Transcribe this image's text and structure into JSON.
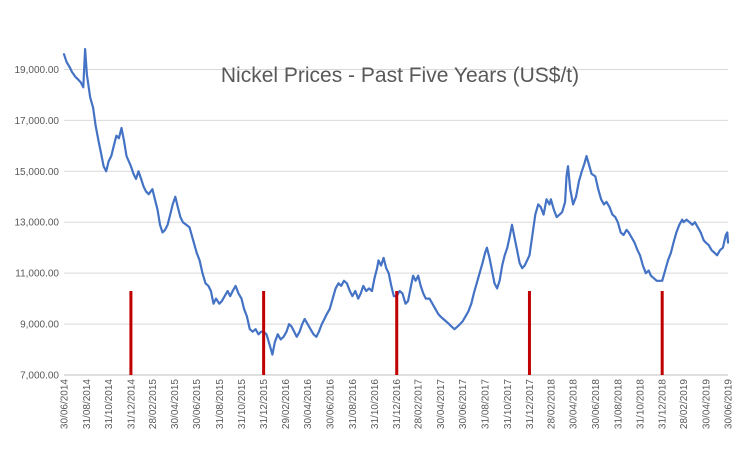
{
  "chart_data": {
    "type": "line",
    "title": "Nickel Prices - Past Five Years  (US$/t)",
    "xlabel": "",
    "ylabel": "",
    "ylim": [
      7000,
      20000
    ],
    "grid": "horizontal",
    "legend": "none",
    "yticks": [
      "7,000.00",
      "9,000.00",
      "11,000.00",
      "13,000.00",
      "15,000.00",
      "17,000.00",
      "19,000.00"
    ],
    "xticks": [
      "30/06/2014",
      "31/08/2014",
      "31/10/2014",
      "31/12/2014",
      "28/02/2015",
      "30/04/2015",
      "30/06/2015",
      "31/08/2015",
      "31/10/2015",
      "31/12/2015",
      "29/02/2016",
      "30/04/2016",
      "30/06/2016",
      "31/08/2016",
      "31/10/2016",
      "31/12/2016",
      "28/02/2017",
      "30/04/2017",
      "30/06/2017",
      "31/08/2017",
      "31/10/2017",
      "31/12/2017",
      "28/02/2018",
      "30/04/2018",
      "30/06/2018",
      "31/08/2018",
      "31/10/2018",
      "31/12/2018",
      "28/02/2019",
      "30/04/2019",
      "30/06/2019"
    ],
    "line_color": "#4472c4",
    "marker_color": "#c00000",
    "series": [
      {
        "points": [
          [
            "2014-06-30",
            19600
          ],
          [
            "2014-07-07",
            19300
          ],
          [
            "2014-07-15",
            19100
          ],
          [
            "2014-07-22",
            18900
          ],
          [
            "2014-08-01",
            18700
          ],
          [
            "2014-08-08",
            18600
          ],
          [
            "2014-08-15",
            18500
          ],
          [
            "2014-08-22",
            18300
          ],
          [
            "2014-08-27",
            19800
          ],
          [
            "2014-09-01",
            18800
          ],
          [
            "2014-09-10",
            17900
          ],
          [
            "2014-09-18",
            17500
          ],
          [
            "2014-09-25",
            16800
          ],
          [
            "2014-10-03",
            16200
          ],
          [
            "2014-10-10",
            15700
          ],
          [
            "2014-10-17",
            15200
          ],
          [
            "2014-10-24",
            15000
          ],
          [
            "2014-10-31",
            15400
          ],
          [
            "2014-11-07",
            15600
          ],
          [
            "2014-11-14",
            16000
          ],
          [
            "2014-11-21",
            16400
          ],
          [
            "2014-11-28",
            16300
          ],
          [
            "2014-12-05",
            16700
          ],
          [
            "2014-12-12",
            16200
          ],
          [
            "2014-12-19",
            15600
          ],
          [
            "2014-12-31",
            15200
          ],
          [
            "2015-01-07",
            14900
          ],
          [
            "2015-01-14",
            14700
          ],
          [
            "2015-01-21",
            15000
          ],
          [
            "2015-01-28",
            14700
          ],
          [
            "2015-02-04",
            14400
          ],
          [
            "2015-02-11",
            14200
          ],
          [
            "2015-02-18",
            14100
          ],
          [
            "2015-02-28",
            14300
          ],
          [
            "2015-03-07",
            13900
          ],
          [
            "2015-03-14",
            13500
          ],
          [
            "2015-03-21",
            12900
          ],
          [
            "2015-03-28",
            12600
          ],
          [
            "2015-04-04",
            12700
          ],
          [
            "2015-04-11",
            12900
          ],
          [
            "2015-04-18",
            13300
          ],
          [
            "2015-04-25",
            13700
          ],
          [
            "2015-05-02",
            14000
          ],
          [
            "2015-05-09",
            13600
          ],
          [
            "2015-05-16",
            13200
          ],
          [
            "2015-05-23",
            13000
          ],
          [
            "2015-06-01",
            12900
          ],
          [
            "2015-06-10",
            12800
          ],
          [
            "2015-06-20",
            12300
          ],
          [
            "2015-06-30",
            11800
          ],
          [
            "2015-07-08",
            11500
          ],
          [
            "2015-07-16",
            11000
          ],
          [
            "2015-07-24",
            10600
          ],
          [
            "2015-08-01",
            10500
          ],
          [
            "2015-08-08",
            10300
          ],
          [
            "2015-08-15",
            9800
          ],
          [
            "2015-08-22",
            10000
          ],
          [
            "2015-08-31",
            9800
          ],
          [
            "2015-09-07",
            9900
          ],
          [
            "2015-09-15",
            10100
          ],
          [
            "2015-09-23",
            10300
          ],
          [
            "2015-09-30",
            10100
          ],
          [
            "2015-10-07",
            10300
          ],
          [
            "2015-10-15",
            10500
          ],
          [
            "2015-10-23",
            10200
          ],
          [
            "2015-10-31",
            10000
          ],
          [
            "2015-11-07",
            9600
          ],
          [
            "2015-11-15",
            9300
          ],
          [
            "2015-11-23",
            8800
          ],
          [
            "2015-12-01",
            8700
          ],
          [
            "2015-12-09",
            8800
          ],
          [
            "2015-12-17",
            8600
          ],
          [
            "2015-12-24",
            8700
          ],
          [
            "2015-12-31",
            8700
          ],
          [
            "2016-01-08",
            8600
          ],
          [
            "2016-01-16",
            8200
          ],
          [
            "2016-01-24",
            7800
          ],
          [
            "2016-01-31",
            8300
          ],
          [
            "2016-02-08",
            8600
          ],
          [
            "2016-02-16",
            8400
          ],
          [
            "2016-02-24",
            8500
          ],
          [
            "2016-03-03",
            8700
          ],
          [
            "2016-03-10",
            9000
          ],
          [
            "2016-03-17",
            8900
          ],
          [
            "2016-03-24",
            8700
          ],
          [
            "2016-03-31",
            8500
          ],
          [
            "2016-04-08",
            8700
          ],
          [
            "2016-04-15",
            9000
          ],
          [
            "2016-04-22",
            9200
          ],
          [
            "2016-04-30",
            9000
          ],
          [
            "2016-05-08",
            8800
          ],
          [
            "2016-05-16",
            8600
          ],
          [
            "2016-05-24",
            8500
          ],
          [
            "2016-05-31",
            8700
          ],
          [
            "2016-06-08",
            9000
          ],
          [
            "2016-06-15",
            9200
          ],
          [
            "2016-06-22",
            9400
          ],
          [
            "2016-06-30",
            9600
          ],
          [
            "2016-07-08",
            10000
          ],
          [
            "2016-07-16",
            10400
          ],
          [
            "2016-07-24",
            10600
          ],
          [
            "2016-07-31",
            10500
          ],
          [
            "2016-08-08",
            10700
          ],
          [
            "2016-08-16",
            10600
          ],
          [
            "2016-08-24",
            10300
          ],
          [
            "2016-08-31",
            10100
          ],
          [
            "2016-09-08",
            10300
          ],
          [
            "2016-09-16",
            10000
          ],
          [
            "2016-09-23",
            10200
          ],
          [
            "2016-09-30",
            10500
          ],
          [
            "2016-10-08",
            10300
          ],
          [
            "2016-10-16",
            10400
          ],
          [
            "2016-10-24",
            10300
          ],
          [
            "2016-10-31",
            10800
          ],
          [
            "2016-11-07",
            11200
          ],
          [
            "2016-11-11",
            11500
          ],
          [
            "2016-11-18",
            11300
          ],
          [
            "2016-11-25",
            11600
          ],
          [
            "2016-12-02",
            11200
          ],
          [
            "2016-12-09",
            11000
          ],
          [
            "2016-12-16",
            10500
          ],
          [
            "2016-12-23",
            10100
          ],
          [
            "2016-12-31",
            10100
          ],
          [
            "2017-01-08",
            10300
          ],
          [
            "2017-01-16",
            10200
          ],
          [
            "2017-01-24",
            9800
          ],
          [
            "2017-01-31",
            9900
          ],
          [
            "2017-02-07",
            10400
          ],
          [
            "2017-02-14",
            10900
          ],
          [
            "2017-02-21",
            10700
          ],
          [
            "2017-02-28",
            10900
          ],
          [
            "2017-03-07",
            10500
          ],
          [
            "2017-03-14",
            10200
          ],
          [
            "2017-03-21",
            10000
          ],
          [
            "2017-03-31",
            10000
          ],
          [
            "2017-04-08",
            9800
          ],
          [
            "2017-04-16",
            9600
          ],
          [
            "2017-04-24",
            9400
          ],
          [
            "2017-04-30",
            9300
          ],
          [
            "2017-05-08",
            9200
          ],
          [
            "2017-05-16",
            9100
          ],
          [
            "2017-05-24",
            9000
          ],
          [
            "2017-05-31",
            8900
          ],
          [
            "2017-06-08",
            8800
          ],
          [
            "2017-06-16",
            8900
          ],
          [
            "2017-06-23",
            9000
          ],
          [
            "2017-06-30",
            9100
          ],
          [
            "2017-07-08",
            9300
          ],
          [
            "2017-07-16",
            9500
          ],
          [
            "2017-07-24",
            9800
          ],
          [
            "2017-07-31",
            10200
          ],
          [
            "2017-08-08",
            10600
          ],
          [
            "2017-08-16",
            11000
          ],
          [
            "2017-08-24",
            11400
          ],
          [
            "2017-08-31",
            11800
          ],
          [
            "2017-09-05",
            12000
          ],
          [
            "2017-09-12",
            11600
          ],
          [
            "2017-09-19",
            11100
          ],
          [
            "2017-09-26",
            10600
          ],
          [
            "2017-10-03",
            10400
          ],
          [
            "2017-10-10",
            10700
          ],
          [
            "2017-10-17",
            11300
          ],
          [
            "2017-10-24",
            11700
          ],
          [
            "2017-10-31",
            12000
          ],
          [
            "2017-11-06",
            12400
          ],
          [
            "2017-11-13",
            12900
          ],
          [
            "2017-11-20",
            12400
          ],
          [
            "2017-11-27",
            11900
          ],
          [
            "2017-12-04",
            11400
          ],
          [
            "2017-12-11",
            11200
          ],
          [
            "2017-12-18",
            11300
          ],
          [
            "2017-12-31",
            11700
          ],
          [
            "2018-01-08",
            12500
          ],
          [
            "2018-01-16",
            13300
          ],
          [
            "2018-01-24",
            13700
          ],
          [
            "2018-01-31",
            13600
          ],
          [
            "2018-02-08",
            13300
          ],
          [
            "2018-02-16",
            13900
          ],
          [
            "2018-02-24",
            13700
          ],
          [
            "2018-02-28",
            13900
          ],
          [
            "2018-03-08",
            13500
          ],
          [
            "2018-03-16",
            13200
          ],
          [
            "2018-03-24",
            13300
          ],
          [
            "2018-03-31",
            13400
          ],
          [
            "2018-04-08",
            13800
          ],
          [
            "2018-04-12",
            14800
          ],
          [
            "2018-04-16",
            15200
          ],
          [
            "2018-04-22",
            14300
          ],
          [
            "2018-04-30",
            13700
          ],
          [
            "2018-05-08",
            14000
          ],
          [
            "2018-05-16",
            14600
          ],
          [
            "2018-05-24",
            15000
          ],
          [
            "2018-05-31",
            15300
          ],
          [
            "2018-06-06",
            15600
          ],
          [
            "2018-06-12",
            15300
          ],
          [
            "2018-06-20",
            14900
          ],
          [
            "2018-06-30",
            14800
          ],
          [
            "2018-07-08",
            14300
          ],
          [
            "2018-07-16",
            13900
          ],
          [
            "2018-07-24",
            13700
          ],
          [
            "2018-07-31",
            13800
          ],
          [
            "2018-08-08",
            13600
          ],
          [
            "2018-08-16",
            13300
          ],
          [
            "2018-08-24",
            13200
          ],
          [
            "2018-08-31",
            13000
          ],
          [
            "2018-09-08",
            12600
          ],
          [
            "2018-09-16",
            12500
          ],
          [
            "2018-09-24",
            12700
          ],
          [
            "2018-09-30",
            12600
          ],
          [
            "2018-10-08",
            12400
          ],
          [
            "2018-10-16",
            12200
          ],
          [
            "2018-10-24",
            11900
          ],
          [
            "2018-10-31",
            11700
          ],
          [
            "2018-11-08",
            11300
          ],
          [
            "2018-11-16",
            11000
          ],
          [
            "2018-11-24",
            11100
          ],
          [
            "2018-11-30",
            10900
          ],
          [
            "2018-12-08",
            10800
          ],
          [
            "2018-12-16",
            10700
          ],
          [
            "2018-12-24",
            10700
          ],
          [
            "2018-12-31",
            10700
          ],
          [
            "2019-01-08",
            11100
          ],
          [
            "2019-01-16",
            11500
          ],
          [
            "2019-01-24",
            11800
          ],
          [
            "2019-01-31",
            12200
          ],
          [
            "2019-02-08",
            12600
          ],
          [
            "2019-02-16",
            12900
          ],
          [
            "2019-02-24",
            13100
          ],
          [
            "2019-02-28",
            13000
          ],
          [
            "2019-03-08",
            13100
          ],
          [
            "2019-03-16",
            13000
          ],
          [
            "2019-03-24",
            12900
          ],
          [
            "2019-03-31",
            13000
          ],
          [
            "2019-04-08",
            12800
          ],
          [
            "2019-04-16",
            12600
          ],
          [
            "2019-04-24",
            12300
          ],
          [
            "2019-04-30",
            12200
          ],
          [
            "2019-05-08",
            12100
          ],
          [
            "2019-05-16",
            11900
          ],
          [
            "2019-05-24",
            11800
          ],
          [
            "2019-05-31",
            11700
          ],
          [
            "2019-06-08",
            11900
          ],
          [
            "2019-06-16",
            12000
          ],
          [
            "2019-06-24",
            12500
          ],
          [
            "2019-06-28",
            12600
          ],
          [
            "2019-06-30",
            12200
          ]
        ]
      }
    ],
    "markers": [
      {
        "x": "2014-12-31",
        "y_from": 7000,
        "y_to": 10300
      },
      {
        "x": "2015-12-31",
        "y_from": 7000,
        "y_to": 10300
      },
      {
        "x": "2016-12-31",
        "y_from": 7000,
        "y_to": 10300
      },
      {
        "x": "2017-12-31",
        "y_from": 7000,
        "y_to": 10300
      },
      {
        "x": "2018-12-31",
        "y_from": 7000,
        "y_to": 10300
      }
    ]
  }
}
